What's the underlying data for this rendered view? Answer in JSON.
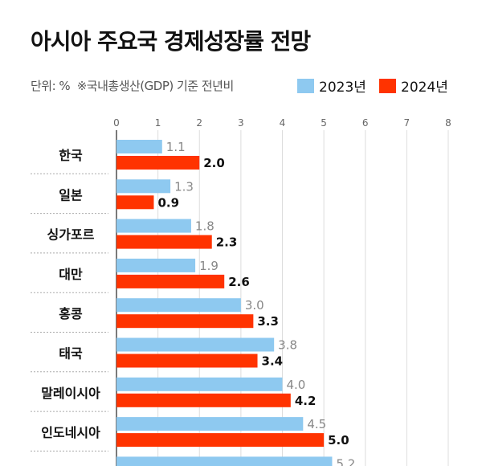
{
  "title": "아시아 주요국 경제성장률 전망",
  "unit_note": "단위: %",
  "basis_note": "※국내총생산(GDP) 기준 전년비",
  "colors": {
    "2023": "#8ec9f0",
    "2024": "#ff3300"
  },
  "chart_data": {
    "type": "bar",
    "orientation": "horizontal",
    "title": "아시아 주요국 경제성장률 전망",
    "xlim": [
      0,
      8
    ],
    "ticks": [
      "0",
      "1",
      "2",
      "3",
      "4",
      "5",
      "6",
      "7",
      "8"
    ],
    "grid": true,
    "legend_placement": "top-right",
    "categories": [
      "한국",
      "일본",
      "싱가포르",
      "대만",
      "홍콩",
      "태국",
      "말레이시아",
      "인도네시아",
      ""
    ],
    "series": [
      {
        "name": "2023년",
        "values": [
          1.1,
          1.3,
          1.8,
          1.9,
          3.0,
          3.8,
          4.0,
          4.5,
          5.2
        ]
      },
      {
        "name": "2024년",
        "values": [
          2.0,
          0.9,
          2.3,
          2.6,
          3.3,
          3.4,
          4.2,
          5.0,
          null
        ]
      }
    ]
  }
}
